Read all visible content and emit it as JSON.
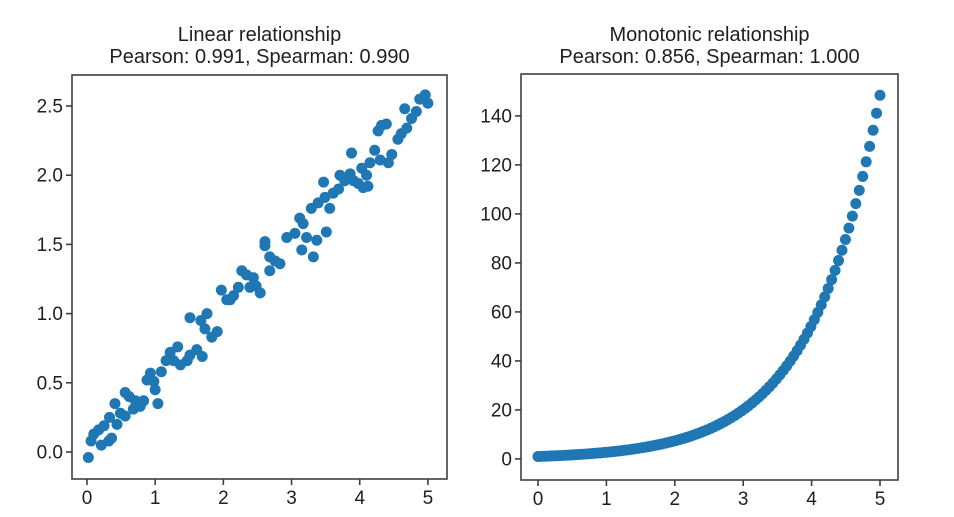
{
  "figure": {
    "background_color": "#ffffff",
    "marker_color": "#1f77b4"
  },
  "chart_data": [
    {
      "panel": "left",
      "type": "scatter",
      "title": "Linear relationship",
      "subtitle": "Pearson: 0.991, Spearman: 0.990",
      "pearson": 0.991,
      "spearman": 0.99,
      "marker_color": "#1f77b4",
      "marker_diameter_px": 11,
      "grid": false,
      "legend": false,
      "xlim": [
        -0.22,
        5.28
      ],
      "ylim": [
        -0.195,
        2.724
      ],
      "x_ticks": [
        0,
        1,
        2,
        3,
        4,
        5
      ],
      "x_tick_labels": [
        "0",
        "1",
        "2",
        "3",
        "4",
        "5"
      ],
      "y_ticks": [
        0.0,
        0.5,
        1.0,
        1.5,
        2.0,
        2.5
      ],
      "y_tick_labels": [
        "0.0",
        "0.5",
        "1.0",
        "1.5",
        "2.0",
        "2.5"
      ],
      "relationship": "y = 0.5*x + gaussian noise (sigma ~ 0.1), 100 points, x uniform on [0, 5]",
      "points": [
        [
          0.02,
          -0.04
        ],
        [
          0.06,
          0.08
        ],
        [
          0.1,
          0.13
        ],
        [
          0.17,
          0.16
        ],
        [
          0.21,
          0.05
        ],
        [
          0.25,
          0.19
        ],
        [
          0.32,
          0.08
        ],
        [
          0.33,
          0.25
        ],
        [
          0.36,
          0.1
        ],
        [
          0.41,
          0.35
        ],
        [
          0.44,
          0.2
        ],
        [
          0.49,
          0.28
        ],
        [
          0.56,
          0.26
        ],
        [
          0.56,
          0.43
        ],
        [
          0.62,
          0.4
        ],
        [
          0.68,
          0.31
        ],
        [
          0.71,
          0.37
        ],
        [
          0.78,
          0.33
        ],
        [
          0.83,
          0.37
        ],
        [
          0.88,
          0.52
        ],
        [
          0.93,
          0.57
        ],
        [
          0.98,
          0.51
        ],
        [
          1.0,
          0.45
        ],
        [
          1.04,
          0.35
        ],
        [
          1.09,
          0.58
        ],
        [
          1.16,
          0.66
        ],
        [
          1.22,
          0.72
        ],
        [
          1.27,
          0.66
        ],
        [
          1.33,
          0.76
        ],
        [
          1.37,
          0.63
        ],
        [
          1.47,
          0.66
        ],
        [
          1.51,
          0.7
        ],
        [
          1.51,
          0.97
        ],
        [
          1.61,
          0.74
        ],
        [
          1.67,
          0.95
        ],
        [
          1.69,
          0.69
        ],
        [
          1.73,
          0.89
        ],
        [
          1.76,
          1.0
        ],
        [
          1.83,
          0.83
        ],
        [
          1.91,
          0.87
        ],
        [
          1.97,
          1.17
        ],
        [
          2.05,
          1.1
        ],
        [
          2.1,
          1.1
        ],
        [
          2.15,
          1.13
        ],
        [
          2.22,
          1.19
        ],
        [
          2.27,
          1.31
        ],
        [
          2.34,
          1.28
        ],
        [
          2.39,
          1.19
        ],
        [
          2.44,
          1.26
        ],
        [
          2.48,
          1.2
        ],
        [
          2.54,
          1.15
        ],
        [
          2.61,
          1.49
        ],
        [
          2.61,
          1.52
        ],
        [
          2.68,
          1.41
        ],
        [
          2.68,
          1.31
        ],
        [
          2.76,
          1.38
        ],
        [
          2.83,
          1.36
        ],
        [
          2.93,
          1.55
        ],
        [
          3.05,
          1.58
        ],
        [
          3.12,
          1.69
        ],
        [
          3.15,
          1.46
        ],
        [
          3.17,
          1.65
        ],
        [
          3.22,
          1.55
        ],
        [
          3.29,
          1.76
        ],
        [
          3.32,
          1.41
        ],
        [
          3.37,
          1.53
        ],
        [
          3.39,
          1.8
        ],
        [
          3.47,
          1.95
        ],
        [
          3.49,
          1.84
        ],
        [
          3.51,
          1.59
        ],
        [
          3.56,
          1.76
        ],
        [
          3.61,
          1.87
        ],
        [
          3.69,
          1.9
        ],
        [
          3.71,
          2.0
        ],
        [
          3.78,
          1.96
        ],
        [
          3.86,
          2.01
        ],
        [
          3.88,
          2.16
        ],
        [
          3.91,
          1.96
        ],
        [
          3.98,
          1.94
        ],
        [
          4.03,
          2.05
        ],
        [
          4.05,
          1.91
        ],
        [
          4.1,
          2.0
        ],
        [
          4.12,
          1.92
        ],
        [
          4.15,
          2.09
        ],
        [
          4.22,
          2.18
        ],
        [
          4.27,
          2.32
        ],
        [
          4.3,
          2.11
        ],
        [
          4.32,
          2.36
        ],
        [
          4.39,
          2.37
        ],
        [
          4.42,
          2.09
        ],
        [
          4.47,
          2.15
        ],
        [
          4.56,
          2.26
        ],
        [
          4.61,
          2.3
        ],
        [
          4.66,
          2.48
        ],
        [
          4.69,
          2.34
        ],
        [
          4.76,
          2.41
        ],
        [
          4.83,
          2.46
        ],
        [
          4.88,
          2.55
        ],
        [
          4.96,
          2.58
        ],
        [
          5.0,
          2.52
        ]
      ]
    },
    {
      "panel": "right",
      "type": "scatter",
      "title": "Monotonic relationship",
      "subtitle": "Pearson: 0.856, Spearman: 1.000",
      "pearson": 0.856,
      "spearman": 1.0,
      "marker_color": "#1f77b4",
      "marker_diameter_px": 11,
      "grid": false,
      "legend": false,
      "xlim": [
        -0.2485,
        5.2632
      ],
      "ylim": [
        -8.6,
        157.1
      ],
      "x_ticks": [
        0,
        1,
        2,
        3,
        4,
        5
      ],
      "x_tick_labels": [
        "0",
        "1",
        "2",
        "3",
        "4",
        "5"
      ],
      "y_ticks": [
        0,
        20,
        40,
        60,
        80,
        100,
        120,
        140
      ],
      "y_tick_labels": [
        "0",
        "20",
        "40",
        "60",
        "80",
        "100",
        "120",
        "140"
      ],
      "relationship": "y = exp(x), x = linspace(0, 5, 100)",
      "points_generator": {
        "fn": "exp",
        "x_start": 0,
        "x_stop": 5,
        "count": 100
      },
      "sample_points": [
        [
          0.0,
          1.0
        ],
        [
          0.5,
          1.65
        ],
        [
          1.0,
          2.72
        ],
        [
          1.5,
          4.48
        ],
        [
          2.0,
          7.39
        ],
        [
          2.5,
          12.18
        ],
        [
          3.0,
          20.09
        ],
        [
          3.5,
          33.12
        ],
        [
          4.0,
          54.6
        ],
        [
          4.5,
          90.02
        ],
        [
          5.0,
          148.41
        ]
      ]
    }
  ]
}
